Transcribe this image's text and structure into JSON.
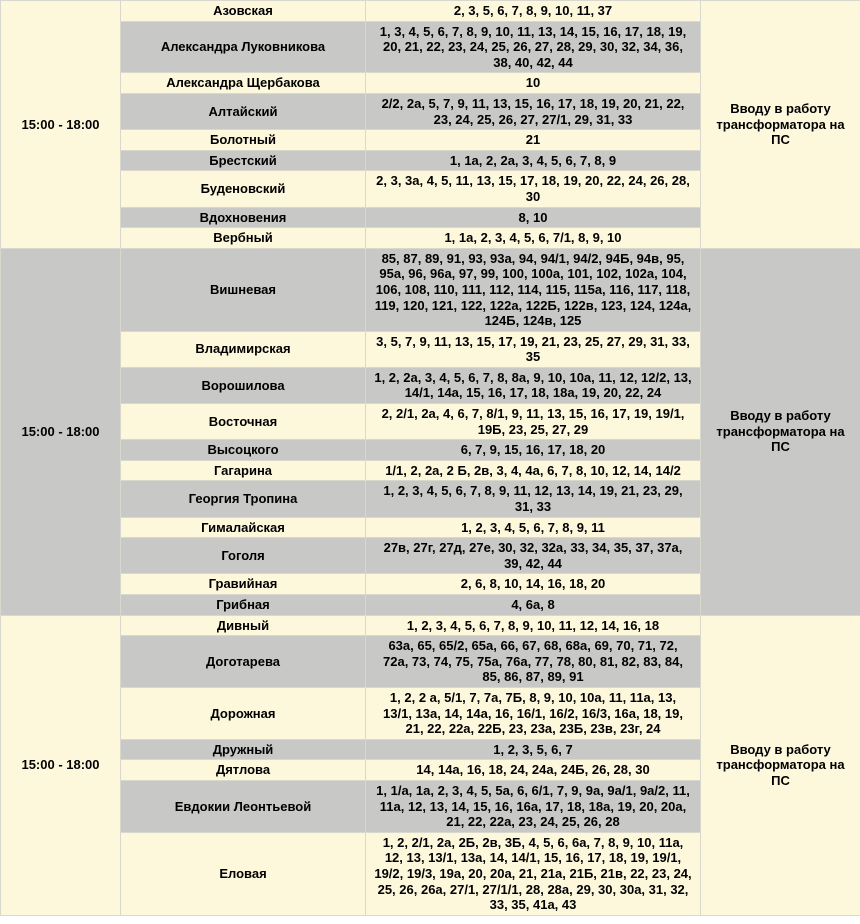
{
  "colors": {
    "row_cream": "#FDF8DC",
    "row_gray": "#C8C8C6",
    "border": "#D8D8CE",
    "text": "#000000"
  },
  "table": {
    "groups": [
      {
        "time": "15:00 - 18:00",
        "reason": "Вводу в работу трансформатора на ПС",
        "rows": [
          {
            "street": "Азовская",
            "houses": "2, 3, 5, 6, 7, 8, 9, 10, 11, 37"
          },
          {
            "street": "Александра Луковникова",
            "houses": "1, 3, 4, 5, 6, 7, 8, 9, 10, 11, 13, 14, 15, 16, 17, 18, 19, 20, 21, 22, 23, 24, 25, 26, 27, 28, 29, 30, 32, 34, 36, 38, 40, 42, 44"
          },
          {
            "street": "Александра Щербакова",
            "houses": "10"
          },
          {
            "street": "Алтайский",
            "houses": "2/2, 2а, 5, 7, 9, 11, 13, 15, 16, 17, 18, 19, 20, 21, 22, 23, 24, 25, 26, 27, 27/1, 29, 31, 33"
          },
          {
            "street": "Болотный",
            "houses": "21"
          },
          {
            "street": "Брестский",
            "houses": "1, 1а, 2, 2а, 3, 4, 5, 6, 7, 8, 9"
          },
          {
            "street": "Буденовский",
            "houses": "2, 3, 3а, 4, 5, 11, 13, 15, 17, 18, 19, 20, 22, 24, 26, 28, 30"
          },
          {
            "street": "Вдохновения",
            "houses": "8, 10"
          },
          {
            "street": "Вербный",
            "houses": "1, 1а, 2, 3, 4, 5, 6, 7/1, 8, 9, 10"
          }
        ]
      },
      {
        "time": "15:00 - 18:00",
        "reason": "Вводу в работу трансформатора на ПС",
        "rows": [
          {
            "street": "Вишневая",
            "houses": "85, 87, 89, 91, 93, 93а, 94, 94/1, 94/2, 94Б, 94в, 95, 95а, 96, 96а, 97, 99, 100, 100а, 101, 102, 102а, 104, 106, 108, 110, 111, 112, 114, 115, 115а, 116, 117, 118, 119, 120, 121, 122, 122а, 122Б, 122в, 123, 124, 124а, 124Б, 124в, 125"
          },
          {
            "street": "Владимирская",
            "houses": "3, 5, 7, 9, 11, 13, 15, 17, 19, 21, 23, 25, 27, 29, 31, 33, 35"
          },
          {
            "street": "Ворошилова",
            "houses": "1, 2, 2а, 3, 4, 5, 6, 7, 8, 8а, 9, 10, 10а, 11, 12, 12/2, 13, 14/1, 14а, 15, 16, 17, 18, 18а, 19, 20, 22, 24"
          },
          {
            "street": "Восточная",
            "houses": "2, 2/1, 2а, 4, 6, 7, 8/1, 9, 11, 13, 15, 16, 17, 19, 19/1, 19Б, 23, 25, 27, 29"
          },
          {
            "street": "Высоцкого",
            "houses": "6, 7, 9, 15, 16, 17, 18, 20"
          },
          {
            "street": "Гагарина",
            "houses": "1/1, 2, 2а, 2 Б, 2в, 3, 4, 4а, 6, 7, 8, 10, 12, 14, 14/2"
          },
          {
            "street": "Георгия Тропина",
            "houses": "1, 2, 3, 4, 5, 6, 7, 8, 9, 11, 12, 13, 14, 19, 21, 23, 29, 31, 33"
          },
          {
            "street": "Гималайская",
            "houses": "1, 2, 3, 4, 5, 6, 7, 8, 9, 11"
          },
          {
            "street": "Гоголя",
            "houses": "27в, 27г, 27д, 27е, 30, 32, 32а, 33, 34, 35, 37, 37а, 39, 42, 44"
          },
          {
            "street": "Гравийная",
            "houses": "2, 6, 8, 10, 14, 16, 18, 20"
          },
          {
            "street": "Грибная",
            "houses": "4, 6а, 8"
          }
        ]
      },
      {
        "time": "15:00 - 18:00",
        "reason": "Вводу в работу трансформатора на ПС",
        "rows": [
          {
            "street": "Дивный",
            "houses": "1, 2, 3, 4, 5, 6, 7, 8, 9, 10, 11, 12, 14, 16, 18"
          },
          {
            "street": "Доготарева",
            "houses": "63а, 65, 65/2, 65а, 66, 67, 68, 68а, 69, 70, 71, 72, 72а, 73, 74, 75, 75а, 76а, 77, 78, 80, 81, 82, 83, 84, 85, 86, 87, 89, 91"
          },
          {
            "street": "Дорожная",
            "houses": "1, 2, 2 а, 5/1, 7, 7а, 7Б, 8, 9, 10, 10а, 11, 11а, 13, 13/1, 13а, 14, 14а, 16, 16/1, 16/2, 16/3, 16а, 18, 19, 21, 22, 22а, 22Б, 23, 23а, 23Б, 23в, 23г, 24"
          },
          {
            "street": "Дружный",
            "houses": "1, 2, 3, 5, 6, 7"
          },
          {
            "street": "Дятлова",
            "houses": "14, 14а, 16, 18, 24, 24а, 24Б, 26, 28, 30"
          },
          {
            "street": "Евдокии Леонтьевой",
            "houses": "1, 1/а, 1а, 2, 3, 4, 5, 5а, 6, 6/1, 7, 9, 9а, 9а/1, 9а/2, 11, 11а, 12, 13, 14, 15, 16, 16а, 17, 18, 18а, 19, 20, 20а, 21, 22, 22а, 23, 24, 25, 26, 28"
          },
          {
            "street": "Еловая",
            "houses": "1, 2, 2/1, 2а, 2Б, 2в, 3Б, 4, 5, 6, 6а, 7, 8, 9, 10, 11а, 12, 13, 13/1, 13а, 14, 14/1, 15, 16, 17, 18, 19, 19/1, 19/2, 19/3, 19а, 20, 20а, 21, 21а, 21Б, 21в, 22, 23, 24, 25, 26, 26а, 27/1, 27/1/1, 28, 28а, 29, 30, 30а, 31, 32, 33, 35, 41а, 43"
          }
        ]
      }
    ]
  }
}
